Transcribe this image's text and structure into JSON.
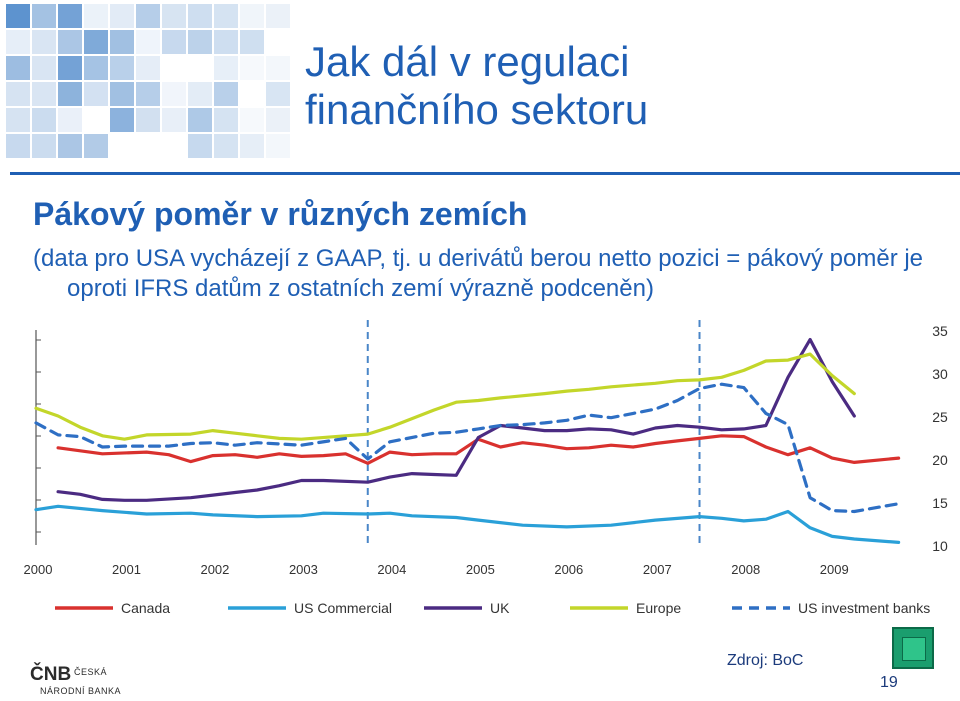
{
  "slide": {
    "title_line1": "Jak dál v regulaci",
    "title_line2": "finančního sektoru",
    "subtitle": "Pákový poměr v různých zemích",
    "note": "(data pro USA vycházejí z GAAP, tj. u derivátů berou netto pozici = pákový poměr je oproti IFRS datům z ostatních zemí výrazně podceněn)",
    "source": "Zdroj: BoC",
    "page_number": "19",
    "logo_mark": "ČNB",
    "logo_line1": "ČESKÁ",
    "logo_line2": "NÁRODNÍ BANKA",
    "accent_color": "#1f5fb4"
  },
  "chart_data": {
    "type": "line",
    "xlim": [
      2000,
      2009.8
    ],
    "ylim": [
      10,
      35
    ],
    "x_ticks": [
      2000,
      2001,
      2002,
      2003,
      2004,
      2005,
      2006,
      2007,
      2008,
      2009
    ],
    "y_ticks": [
      10,
      15,
      20,
      25,
      30,
      35
    ],
    "y_axis_position": "right",
    "vertical_markers": [
      2003.75,
      2007.5
    ],
    "legend_position": "bottom",
    "series": [
      {
        "name": "Canada",
        "color": "#d9312e",
        "style": "solid",
        "points": [
          [
            2000.25,
            21.3
          ],
          [
            2000.75,
            20.6
          ],
          [
            2001.25,
            20.8
          ],
          [
            2001.5,
            20.5
          ],
          [
            2001.75,
            19.7
          ],
          [
            2002,
            20.4
          ],
          [
            2002.25,
            20.5
          ],
          [
            2002.5,
            20.2
          ],
          [
            2002.75,
            20.6
          ],
          [
            2003,
            20.3
          ],
          [
            2003.25,
            20.4
          ],
          [
            2003.5,
            20.6
          ],
          [
            2003.75,
            19.5
          ],
          [
            2004,
            20.8
          ],
          [
            2004.25,
            20.5
          ],
          [
            2004.5,
            20.6
          ],
          [
            2004.75,
            20.6
          ],
          [
            2005,
            22.3
          ],
          [
            2005.25,
            21.4
          ],
          [
            2005.5,
            21.9
          ],
          [
            2005.75,
            21.6
          ],
          [
            2006,
            21.2
          ],
          [
            2006.25,
            21.3
          ],
          [
            2006.5,
            21.6
          ],
          [
            2006.75,
            21.4
          ],
          [
            2007,
            21.8
          ],
          [
            2007.25,
            22.1
          ],
          [
            2007.5,
            22.4
          ],
          [
            2007.75,
            22.7
          ],
          [
            2008,
            22.6
          ],
          [
            2008.25,
            21.4
          ],
          [
            2008.5,
            20.5
          ],
          [
            2008.75,
            21.3
          ],
          [
            2009,
            20.1
          ],
          [
            2009.25,
            19.6
          ],
          [
            2009.75,
            20.1
          ]
        ]
      },
      {
        "name": "US Commercial",
        "color": "#2aa0d8",
        "style": "solid",
        "points": [
          [
            2000,
            14.1
          ],
          [
            2000.25,
            14.5
          ],
          [
            2000.75,
            14.0
          ],
          [
            2001,
            13.8
          ],
          [
            2001.25,
            13.6
          ],
          [
            2001.75,
            13.7
          ],
          [
            2002,
            13.5
          ],
          [
            2002.5,
            13.3
          ],
          [
            2003,
            13.4
          ],
          [
            2003.25,
            13.7
          ],
          [
            2003.75,
            13.6
          ],
          [
            2004,
            13.7
          ],
          [
            2004.25,
            13.4
          ],
          [
            2004.75,
            13.2
          ],
          [
            2005,
            12.9
          ],
          [
            2005.5,
            12.3
          ],
          [
            2006,
            12.1
          ],
          [
            2006.5,
            12.3
          ],
          [
            2007,
            12.9
          ],
          [
            2007.5,
            13.3
          ],
          [
            2007.75,
            13.1
          ],
          [
            2008,
            12.8
          ],
          [
            2008.25,
            13.0
          ],
          [
            2008.5,
            13.9
          ],
          [
            2008.75,
            12.0
          ],
          [
            2009,
            11.0
          ],
          [
            2009.25,
            10.7
          ],
          [
            2009.75,
            10.3
          ]
        ]
      },
      {
        "name": "UK",
        "color": "#4b2b82",
        "style": "solid",
        "points": [
          [
            2000.25,
            16.2
          ],
          [
            2000.5,
            15.9
          ],
          [
            2000.75,
            15.3
          ],
          [
            2001,
            15.2
          ],
          [
            2001.25,
            15.2
          ],
          [
            2001.75,
            15.5
          ],
          [
            2002,
            15.8
          ],
          [
            2002.25,
            16.1
          ],
          [
            2002.5,
            16.4
          ],
          [
            2002.75,
            16.9
          ],
          [
            2003,
            17.5
          ],
          [
            2003.25,
            17.5
          ],
          [
            2003.75,
            17.3
          ],
          [
            2004,
            17.9
          ],
          [
            2004.25,
            18.3
          ],
          [
            2004.5,
            18.2
          ],
          [
            2004.75,
            18.1
          ],
          [
            2005,
            22.5
          ],
          [
            2005.25,
            23.9
          ],
          [
            2005.5,
            23.6
          ],
          [
            2005.75,
            23.3
          ],
          [
            2006,
            23.3
          ],
          [
            2006.25,
            23.5
          ],
          [
            2006.5,
            23.4
          ],
          [
            2006.75,
            22.9
          ],
          [
            2007,
            23.6
          ],
          [
            2007.25,
            23.9
          ],
          [
            2007.5,
            23.7
          ],
          [
            2007.75,
            23.4
          ],
          [
            2008,
            23.5
          ],
          [
            2008.25,
            23.9
          ],
          [
            2008.5,
            29.5
          ],
          [
            2008.75,
            33.9
          ],
          [
            2009,
            29.0
          ],
          [
            2009.25,
            25.0
          ]
        ]
      },
      {
        "name": "Europe",
        "color": "#c3d62a",
        "style": "solid",
        "points": [
          [
            2000,
            25.9
          ],
          [
            2000.25,
            25.0
          ],
          [
            2000.5,
            23.7
          ],
          [
            2000.75,
            22.7
          ],
          [
            2001,
            22.3
          ],
          [
            2001.25,
            22.8
          ],
          [
            2001.75,
            22.9
          ],
          [
            2002,
            23.3
          ],
          [
            2002.25,
            23.0
          ],
          [
            2002.5,
            22.7
          ],
          [
            2002.75,
            22.4
          ],
          [
            2003,
            22.3
          ],
          [
            2003.5,
            22.7
          ],
          [
            2003.75,
            22.9
          ],
          [
            2004,
            23.7
          ],
          [
            2004.25,
            24.7
          ],
          [
            2004.5,
            25.7
          ],
          [
            2004.75,
            26.6
          ],
          [
            2005,
            26.8
          ],
          [
            2005.25,
            27.1
          ],
          [
            2005.75,
            27.6
          ],
          [
            2006,
            27.9
          ],
          [
            2006.25,
            28.1
          ],
          [
            2006.5,
            28.4
          ],
          [
            2007,
            28.8
          ],
          [
            2007.25,
            29.1
          ],
          [
            2007.5,
            29.2
          ],
          [
            2007.75,
            29.5
          ],
          [
            2008,
            30.3
          ],
          [
            2008.25,
            31.4
          ],
          [
            2008.5,
            31.5
          ],
          [
            2008.75,
            32.2
          ],
          [
            2009,
            29.7
          ],
          [
            2009.25,
            27.6
          ]
        ]
      },
      {
        "name": "US investment banks",
        "color": "#2e6fc4",
        "style": "dashed",
        "points": [
          [
            2000,
            24.2
          ],
          [
            2000.25,
            22.8
          ],
          [
            2000.5,
            22.6
          ],
          [
            2000.75,
            21.4
          ],
          [
            2001,
            21.5
          ],
          [
            2001.5,
            21.5
          ],
          [
            2001.75,
            21.8
          ],
          [
            2002,
            21.9
          ],
          [
            2002.25,
            21.6
          ],
          [
            2002.5,
            21.9
          ],
          [
            2003,
            21.6
          ],
          [
            2003.5,
            22.4
          ],
          [
            2003.75,
            20.0
          ],
          [
            2004,
            22.0
          ],
          [
            2004.5,
            23.0
          ],
          [
            2004.75,
            23.1
          ],
          [
            2005,
            23.5
          ],
          [
            2005.25,
            23.9
          ],
          [
            2005.5,
            24.0
          ],
          [
            2005.75,
            24.2
          ],
          [
            2006,
            24.5
          ],
          [
            2006.25,
            25.1
          ],
          [
            2006.5,
            24.8
          ],
          [
            2006.75,
            25.3
          ],
          [
            2007,
            25.8
          ],
          [
            2007.25,
            26.8
          ],
          [
            2007.5,
            28.2
          ],
          [
            2007.75,
            28.7
          ],
          [
            2008,
            28.3
          ],
          [
            2008.25,
            25.3
          ],
          [
            2008.5,
            24.0
          ],
          [
            2008.75,
            15.5
          ],
          [
            2009,
            14.0
          ],
          [
            2009.25,
            13.9
          ],
          [
            2009.75,
            14.8
          ]
        ]
      }
    ]
  }
}
